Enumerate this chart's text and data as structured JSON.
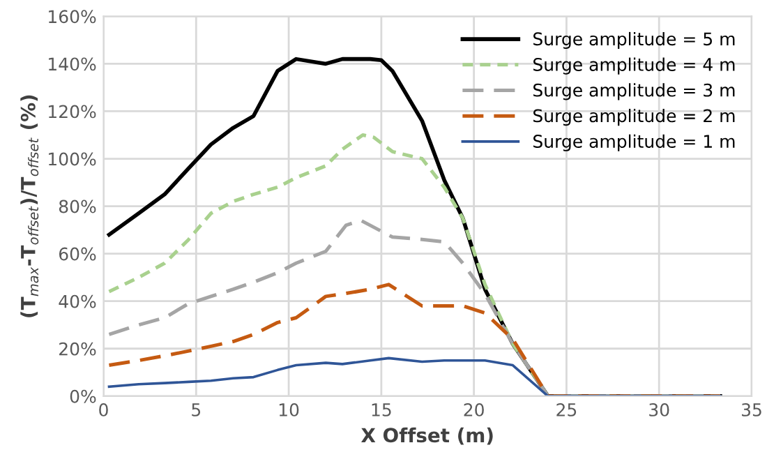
{
  "chart_data": {
    "type": "line",
    "xlabel": "X Offset (m)",
    "ylabel": "(T$_{max}$-T$_{offset}$)/T$_{offset}$ (%)",
    "xlim": [
      0,
      35
    ],
    "xticks": [
      0,
      5,
      10,
      15,
      20,
      25,
      30,
      35
    ],
    "ylim": [
      0,
      160
    ],
    "yticks": [
      {
        "value": 0,
        "label": "0%"
      },
      {
        "value": 20,
        "label": "20%"
      },
      {
        "value": 40,
        "label": "40%"
      },
      {
        "value": 60,
        "label": "60%"
      },
      {
        "value": 80,
        "label": "80%"
      },
      {
        "value": 100,
        "label": "100%"
      },
      {
        "value": 120,
        "label": "120%"
      },
      {
        "value": 140,
        "label": "140%"
      },
      {
        "value": 160,
        "label": "160%"
      }
    ],
    "grid": true,
    "legend": "top right",
    "marker": "none",
    "series": [
      {
        "name": "Surge amplitude = 5 m",
        "color": "#000000",
        "line_style": "solid",
        "x": [
          0.3,
          1.9,
          3.3,
          4.6,
          5.8,
          7,
          8.1,
          9.4,
          10.4,
          12,
          12.9,
          14.4,
          15,
          15.6,
          17.2,
          18.4,
          19.4,
          20.6,
          22.1,
          24,
          33.3
        ],
        "values": [
          68,
          77,
          85,
          96,
          106,
          113,
          118,
          137,
          142,
          140,
          142,
          142,
          141.5,
          137,
          116,
          91,
          75,
          45,
          22,
          0,
          0
        ]
      },
      {
        "name": "Surge amplitude = 4 m",
        "color": "#a9d18e",
        "line_style": "dotted",
        "x": [
          0.3,
          1.9,
          3.3,
          4.6,
          5.8,
          7,
          8.1,
          9.4,
          10.4,
          12,
          12.9,
          14,
          14.6,
          15.6,
          17.2,
          18.4,
          19.4,
          20.6,
          22.1,
          24,
          33.3
        ],
        "values": [
          44,
          50,
          56,
          66,
          77,
          82,
          85,
          88,
          92,
          97,
          104,
          110,
          109,
          103,
          100,
          88,
          75,
          47,
          22,
          0,
          0
        ]
      },
      {
        "name": "Surge amplitude = 3 m",
        "color": "#a5a5a5",
        "line_style": "dashed",
        "x": [
          0.3,
          1.9,
          3.3,
          4.6,
          5.8,
          7,
          8.1,
          9.4,
          10.4,
          12,
          13.1,
          13.9,
          15.6,
          17.2,
          18.4,
          19.4,
          20.6,
          22.1,
          24,
          33.3
        ],
        "values": [
          26,
          30,
          33,
          39,
          42,
          45,
          48,
          52,
          56,
          61,
          72,
          74,
          67,
          66,
          65,
          56,
          43,
          22,
          0,
          0
        ]
      },
      {
        "name": "Surge amplitude = 2 m",
        "color": "#c55a11",
        "line_style": "dashed",
        "x": [
          0.3,
          1.9,
          3.3,
          4.6,
          5.8,
          7,
          8.1,
          9.4,
          10.4,
          12,
          12.9,
          14.4,
          15.4,
          17.2,
          18.4,
          19.4,
          20.6,
          22.1,
          24,
          33.3
        ],
        "values": [
          13,
          15,
          17,
          19,
          21,
          23,
          26,
          31,
          33,
          42,
          43,
          45,
          47,
          38,
          38,
          38,
          35,
          24,
          0,
          0
        ]
      },
      {
        "name": "Surge amplitude = 1 m",
        "color": "#2f5597",
        "line_style": "solid",
        "x": [
          0.3,
          1.9,
          3.3,
          4.6,
          5.8,
          7,
          8.1,
          9.4,
          10.4,
          12,
          12.9,
          14.4,
          15.4,
          17.2,
          18.4,
          19.4,
          20.6,
          22.1,
          24,
          33.3
        ],
        "values": [
          4,
          5,
          5.5,
          6,
          6.5,
          7.5,
          8,
          11,
          13,
          14,
          13.5,
          15,
          16,
          14.5,
          15,
          15,
          15,
          13,
          0,
          0
        ]
      }
    ]
  }
}
